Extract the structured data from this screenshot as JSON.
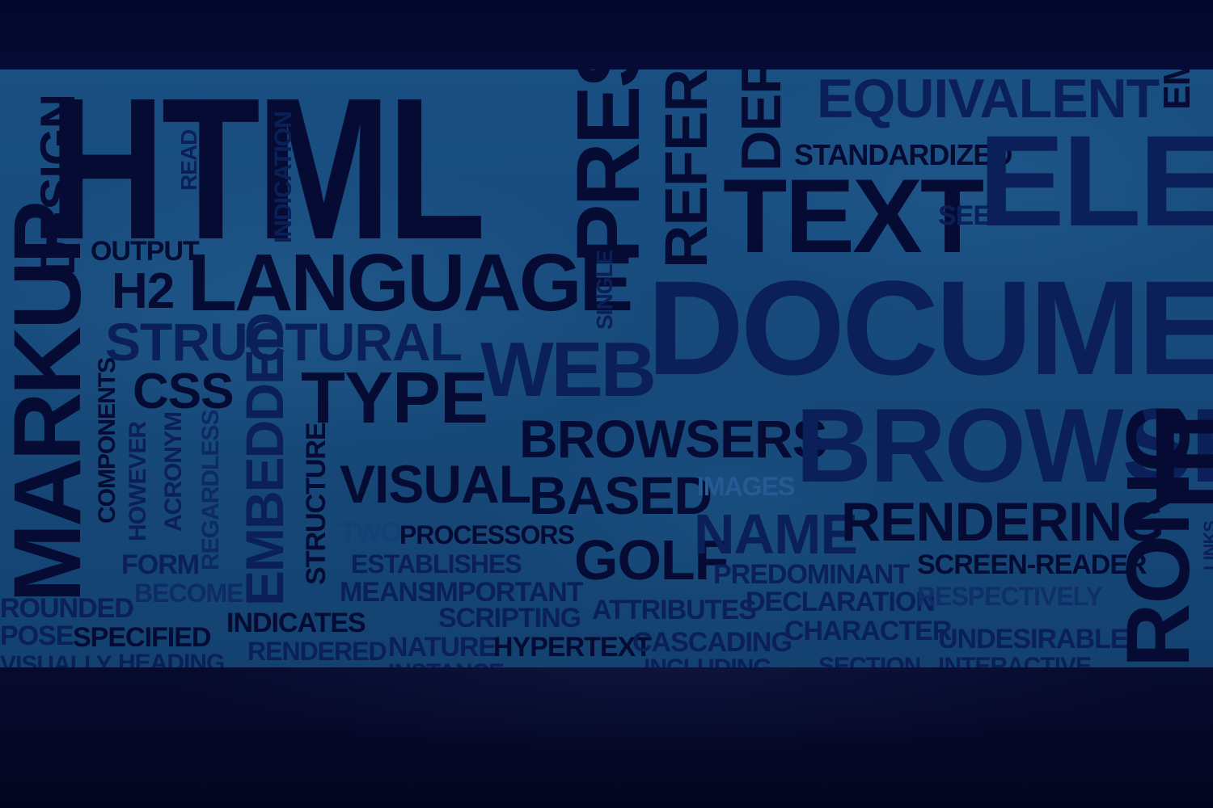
{
  "words": {
    "html": "HTML",
    "markup": "MARKUP",
    "design": "DESIGN",
    "read": "READ",
    "indication": "INDICATION",
    "output": "OUTPUT",
    "h2": "H2",
    "language": "LANGUAGE",
    "structural": "STRUCTURAL",
    "css": "CSS",
    "type": "TYPE",
    "components": "COMPONENTS",
    "however": "HOWEVER",
    "acronym": "ACRONYM",
    "regardless": "REGARDLESS",
    "embedded": "EMBEDDED",
    "structure": "STRUCTURE",
    "visual": "VISUAL",
    "form": "FORM",
    "become": "BECOME",
    "two": "TWO",
    "processors": "PROCESSORS",
    "establishes": "ESTABLISHES",
    "means": "MEANS",
    "important": "IMPORTANT",
    "rounded": "ROUNDED",
    "purpose": "POSE",
    "specified": "SPECIFIED",
    "indicates": "INDICATES",
    "scripting": "SCRIPTING",
    "rendered": "RENDERED",
    "nature": "NATURE",
    "hypertext": "HYPERTEXT",
    "visually": "VISUALLY",
    "heading": "HEADING",
    "instance": "INSTANCE",
    "present": "PRESE",
    "single": "SINGLE",
    "web": "WEB",
    "reference": "REFERENC",
    "browsers": "BROWSERS",
    "based": "BASED",
    "golf": "GOLF",
    "attributes": "ATTRIBUTES",
    "cascading": "CASCADING",
    "including": "INCLUDING",
    "define": "DEFI",
    "equivalent": "EQUIVALENT",
    "standardized": "STANDARDIZED",
    "text": "TEXT",
    "see": "SEE",
    "element": "ELEM",
    "em": "EM",
    "document": "DOCUMEN",
    "browser": "BROWSE",
    "images": "IMAGES",
    "name": "NAME",
    "rendering": "RENDERING",
    "predominant": "PREDOMINANT",
    "screen_reader": "SCREEN-READER",
    "declaration": "DECLARATION",
    "respectively": "RESPECTIVELY",
    "character": "CHARACTER",
    "undesirable": "UNDESIRABLE",
    "section": "SECTION",
    "interactive": "INTERACTIVE",
    "strong": "RONG",
    "e": "E",
    "links": "LINKS"
  }
}
